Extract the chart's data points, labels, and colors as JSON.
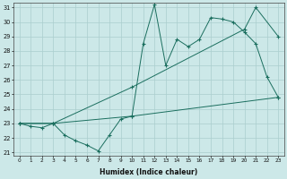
{
  "xlabel": "Humidex (Indice chaleur)",
  "background_color": "#cce8e8",
  "grid_color": "#aacece",
  "line_color": "#1a6e5e",
  "x_min": 0,
  "x_max": 23,
  "y_min": 21,
  "y_max": 31,
  "series1_y": [
    23,
    22.8,
    22.7,
    23.0,
    22.2,
    21.8,
    21.5,
    21.1,
    22.2,
    23.3,
    23.5,
    28.5,
    31.2,
    27.0,
    28.8,
    28.3,
    28.8,
    30.3,
    30.2,
    30.0,
    29.3,
    28.5,
    26.2,
    24.8
  ],
  "series2_x": [
    0,
    3,
    10,
    20,
    21,
    23
  ],
  "series2_y": [
    23,
    23,
    25.5,
    29.5,
    31.0,
    29.0
  ],
  "series3_x": [
    0,
    3,
    10,
    23
  ],
  "series3_y": [
    23,
    23,
    23.5,
    24.8
  ],
  "yticks": [
    21,
    22,
    23,
    24,
    25,
    26,
    27,
    28,
    29,
    30,
    31
  ],
  "xticks": [
    0,
    1,
    2,
    3,
    4,
    5,
    6,
    7,
    8,
    9,
    10,
    11,
    12,
    13,
    14,
    15,
    16,
    17,
    18,
    19,
    20,
    21,
    22,
    23
  ]
}
